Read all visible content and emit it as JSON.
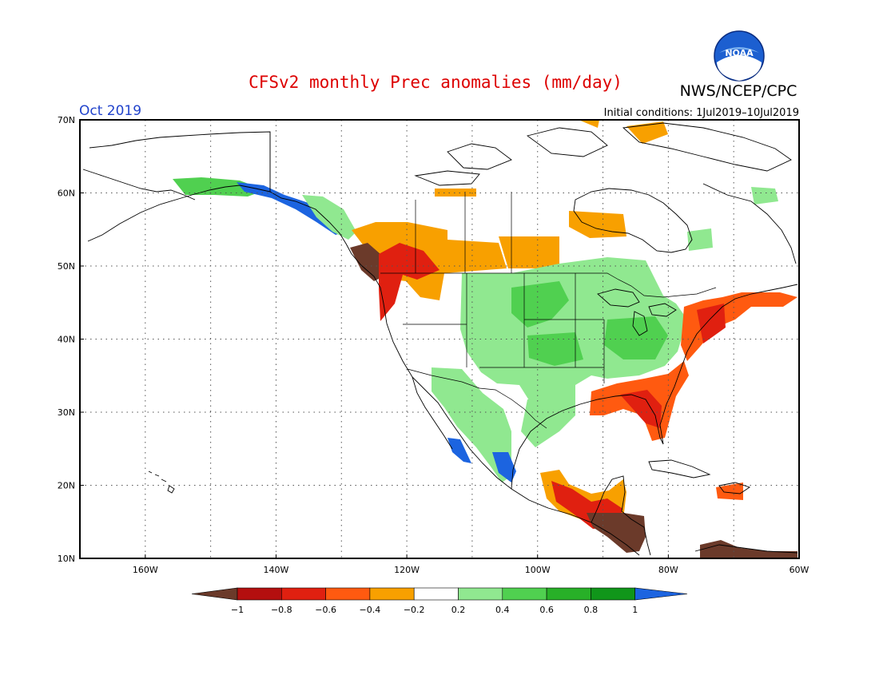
{
  "title": "CFSv2 monthly Prec anomalies (mm/day)",
  "agency": "NWS/NCEP/CPC",
  "logo_text": "NOAA",
  "month_label": "Oct 2019",
  "initial_conditions": "Initial conditions: 1Jul2019–10Jul2019",
  "map": {
    "lon_range": [
      -170,
      -60
    ],
    "lat_range": [
      10,
      70
    ],
    "lat_ticks": [
      "70N",
      "60N",
      "50N",
      "40N",
      "30N",
      "20N",
      "10N"
    ],
    "lon_ticks": [
      "160W",
      "140W",
      "120W",
      "100W",
      "80W",
      "60W"
    ],
    "grid": "dotted"
  },
  "colorbar": {
    "labels": [
      "−1",
      "−0.8",
      "−0.6",
      "−0.4",
      "−0.2",
      "0.2",
      "0.4",
      "0.6",
      "0.8",
      "1"
    ],
    "colors": [
      "#6b3a2a",
      "#b40f0f",
      "#e02010",
      "#ff5a10",
      "#f8a000",
      "#ffffff",
      "#90e890",
      "#50d050",
      "#28b028",
      "#10961a",
      "#1c64e0"
    ]
  },
  "anomaly_regions": [
    {
      "name": "Alaska north slope",
      "category": "0.2"
    },
    {
      "name": "Southeast Alaska coast",
      "category": "1"
    },
    {
      "name": "Pacific Northwest coast",
      "category": "-1"
    },
    {
      "name": "Western Canada",
      "category": "-0.4"
    },
    {
      "name": "Central US",
      "category": "0.4"
    },
    {
      "name": "US Southeast",
      "category": "-0.6"
    },
    {
      "name": "US Northeast coast",
      "category": "-0.6"
    },
    {
      "name": "Hudson Bay",
      "category": "-0.4"
    },
    {
      "name": "Western Mexico",
      "category": "1"
    },
    {
      "name": "Southern Mexico / Central America",
      "category": "-1"
    },
    {
      "name": "Caribbean",
      "category": "-1"
    }
  ]
}
